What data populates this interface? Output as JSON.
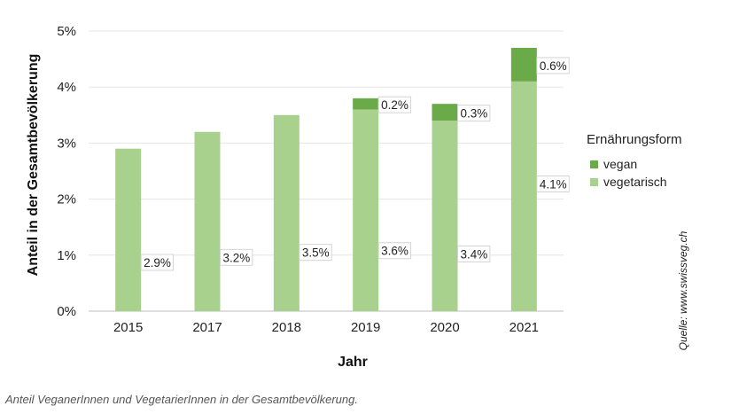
{
  "chart_data": {
    "type": "bar",
    "stacked": true,
    "categories": [
      "2015",
      "2017",
      "2018",
      "2019",
      "2020",
      "2021"
    ],
    "series": [
      {
        "name": "vegetarisch",
        "values": [
          2.9,
          3.2,
          3.5,
          3.6,
          3.4,
          4.1
        ],
        "labels": [
          "2.9%",
          "3.2%",
          "3.5%",
          "3.6%",
          "3.4%",
          "4.1%"
        ]
      },
      {
        "name": "vegan",
        "values": [
          0,
          0,
          0,
          0.2,
          0.3,
          0.6
        ],
        "labels": [
          "",
          "",
          "",
          "0.2%",
          "0.3%",
          "0.6%"
        ]
      }
    ],
    "colors": {
      "vegetarisch": "#a8d18d",
      "vegan": "#6aaa48"
    },
    "xlabel": "Jahr",
    "ylabel": "Anteil in der Gesamtbevölkerung",
    "ylim": [
      0,
      5
    ],
    "yticks": [
      0,
      1,
      2,
      3,
      4,
      5
    ],
    "ytick_labels": [
      "0%",
      "1%",
      "2%",
      "3%",
      "4%",
      "5%"
    ],
    "grid": true,
    "legend": {
      "title": "Ernährungsform",
      "entries": [
        "vegan",
        "vegetarisch"
      ],
      "position": "right"
    },
    "source": "Quelle: www.swissveg.ch"
  },
  "caption": "Anteil VeganerInnen und VegetarierInnen in der Gesamtbevölkerung."
}
